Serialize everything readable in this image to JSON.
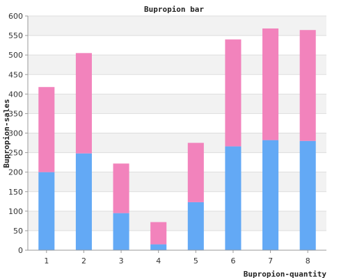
{
  "chart_data": {
    "type": "bar",
    "stacked": true,
    "title": "Bupropion bar",
    "xlabel": "Bupropion-quantity",
    "ylabel": "Bupropion-sales",
    "categories": [
      "1",
      "2",
      "3",
      "4",
      "5",
      "6",
      "7",
      "8"
    ],
    "series": [
      {
        "color": "#63a9f5",
        "values": [
          200,
          248,
          95,
          15,
          123,
          266,
          282,
          280
        ]
      },
      {
        "color": "#f283bc",
        "values": [
          218,
          257,
          127,
          57,
          152,
          274,
          286,
          284
        ]
      }
    ],
    "totals": [
      418,
      505,
      222,
      72,
      275,
      540,
      568,
      564
    ],
    "ylim": [
      0,
      600
    ],
    "yticks": [
      0,
      50,
      100,
      150,
      200,
      250,
      300,
      350,
      400,
      450,
      500,
      550,
      600
    ],
    "grid": true,
    "legend": "none"
  }
}
